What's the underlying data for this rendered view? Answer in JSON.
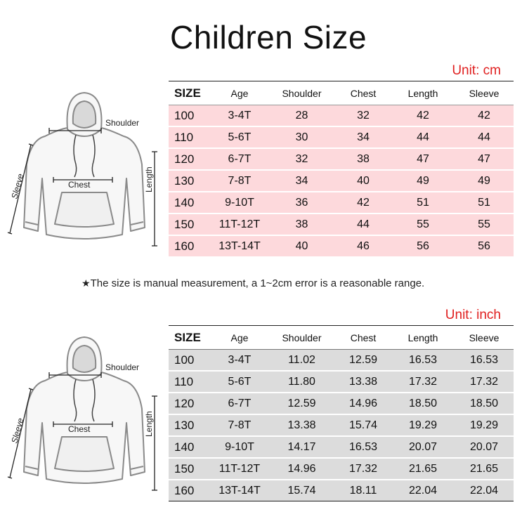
{
  "title": "Children Size",
  "unit_cm": "Unit: cm",
  "unit_inch": "Unit: inch",
  "note": "The size is manual measurement, a 1~2cm error is a reasonable range.",
  "hoodie_labels": {
    "shoulder": "Shoulder",
    "chest": "Chest",
    "sleeve": "Sleeve",
    "length": "Length"
  },
  "headers": [
    "SIZE",
    "Age",
    "Shoulder",
    "Chest",
    "Length",
    "Sleeve"
  ],
  "cm_rows": [
    [
      "100",
      "3-4T",
      "28",
      "32",
      "42",
      "42"
    ],
    [
      "110",
      "5-6T",
      "30",
      "34",
      "44",
      "44"
    ],
    [
      "120",
      "6-7T",
      "32",
      "38",
      "47",
      "47"
    ],
    [
      "130",
      "7-8T",
      "34",
      "40",
      "49",
      "49"
    ],
    [
      "140",
      "9-10T",
      "36",
      "42",
      "51",
      "51"
    ],
    [
      "150",
      "11T-12T",
      "38",
      "44",
      "55",
      "55"
    ],
    [
      "160",
      "13T-14T",
      "40",
      "46",
      "56",
      "56"
    ]
  ],
  "inch_rows": [
    [
      "100",
      "3-4T",
      "11.02",
      "12.59",
      "16.53",
      "16.53"
    ],
    [
      "110",
      "5-6T",
      "11.80",
      "13.38",
      "17.32",
      "17.32"
    ],
    [
      "120",
      "6-7T",
      "12.59",
      "14.96",
      "18.50",
      "18.50"
    ],
    [
      "130",
      "7-8T",
      "13.38",
      "15.74",
      "19.29",
      "19.29"
    ],
    [
      "140",
      "9-10T",
      "14.17",
      "16.53",
      "20.07",
      "20.07"
    ],
    [
      "150",
      "11T-12T",
      "14.96",
      "17.32",
      "21.65",
      "21.65"
    ],
    [
      "160",
      "13T-14T",
      "15.74",
      "18.11",
      "22.04",
      "22.04"
    ]
  ],
  "colors": {
    "unit": "#e02020",
    "cm_row_bg": "#fdd9dc",
    "inch_row_bg": "#dcdcdc"
  }
}
